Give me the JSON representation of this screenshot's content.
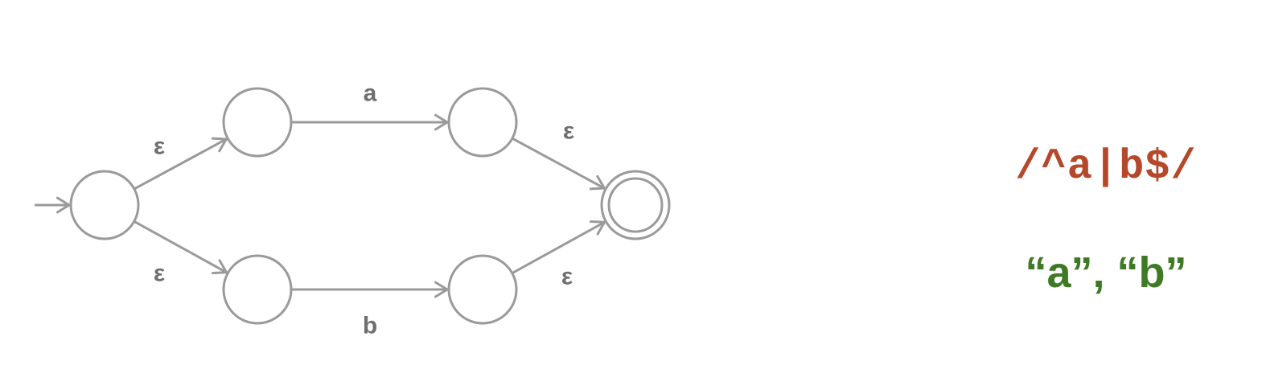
{
  "diagram": {
    "states": [
      {
        "id": "q0",
        "accepting": false
      },
      {
        "id": "q1",
        "accepting": false
      },
      {
        "id": "q2",
        "accepting": false
      },
      {
        "id": "q3",
        "accepting": false
      },
      {
        "id": "q4",
        "accepting": false
      },
      {
        "id": "q5",
        "accepting": true
      }
    ],
    "transitions": [
      {
        "from": "q0",
        "to": "q1",
        "label": "ε"
      },
      {
        "from": "q1",
        "to": "q2",
        "label": "a"
      },
      {
        "from": "q2",
        "to": "q5",
        "label": "ε"
      },
      {
        "from": "q0",
        "to": "q3",
        "label": "ε"
      },
      {
        "from": "q3",
        "to": "q4",
        "label": "b"
      },
      {
        "from": "q4",
        "to": "q5",
        "label": "ε"
      }
    ],
    "start_state": "q0",
    "stroke_color": "#9a9a9a",
    "label_color": "#6f6f6f"
  },
  "regex": {
    "text": "/^a|b$/",
    "color": "#b5482a"
  },
  "matches": {
    "text": "“a”, “b”",
    "color": "#3e7a23"
  }
}
